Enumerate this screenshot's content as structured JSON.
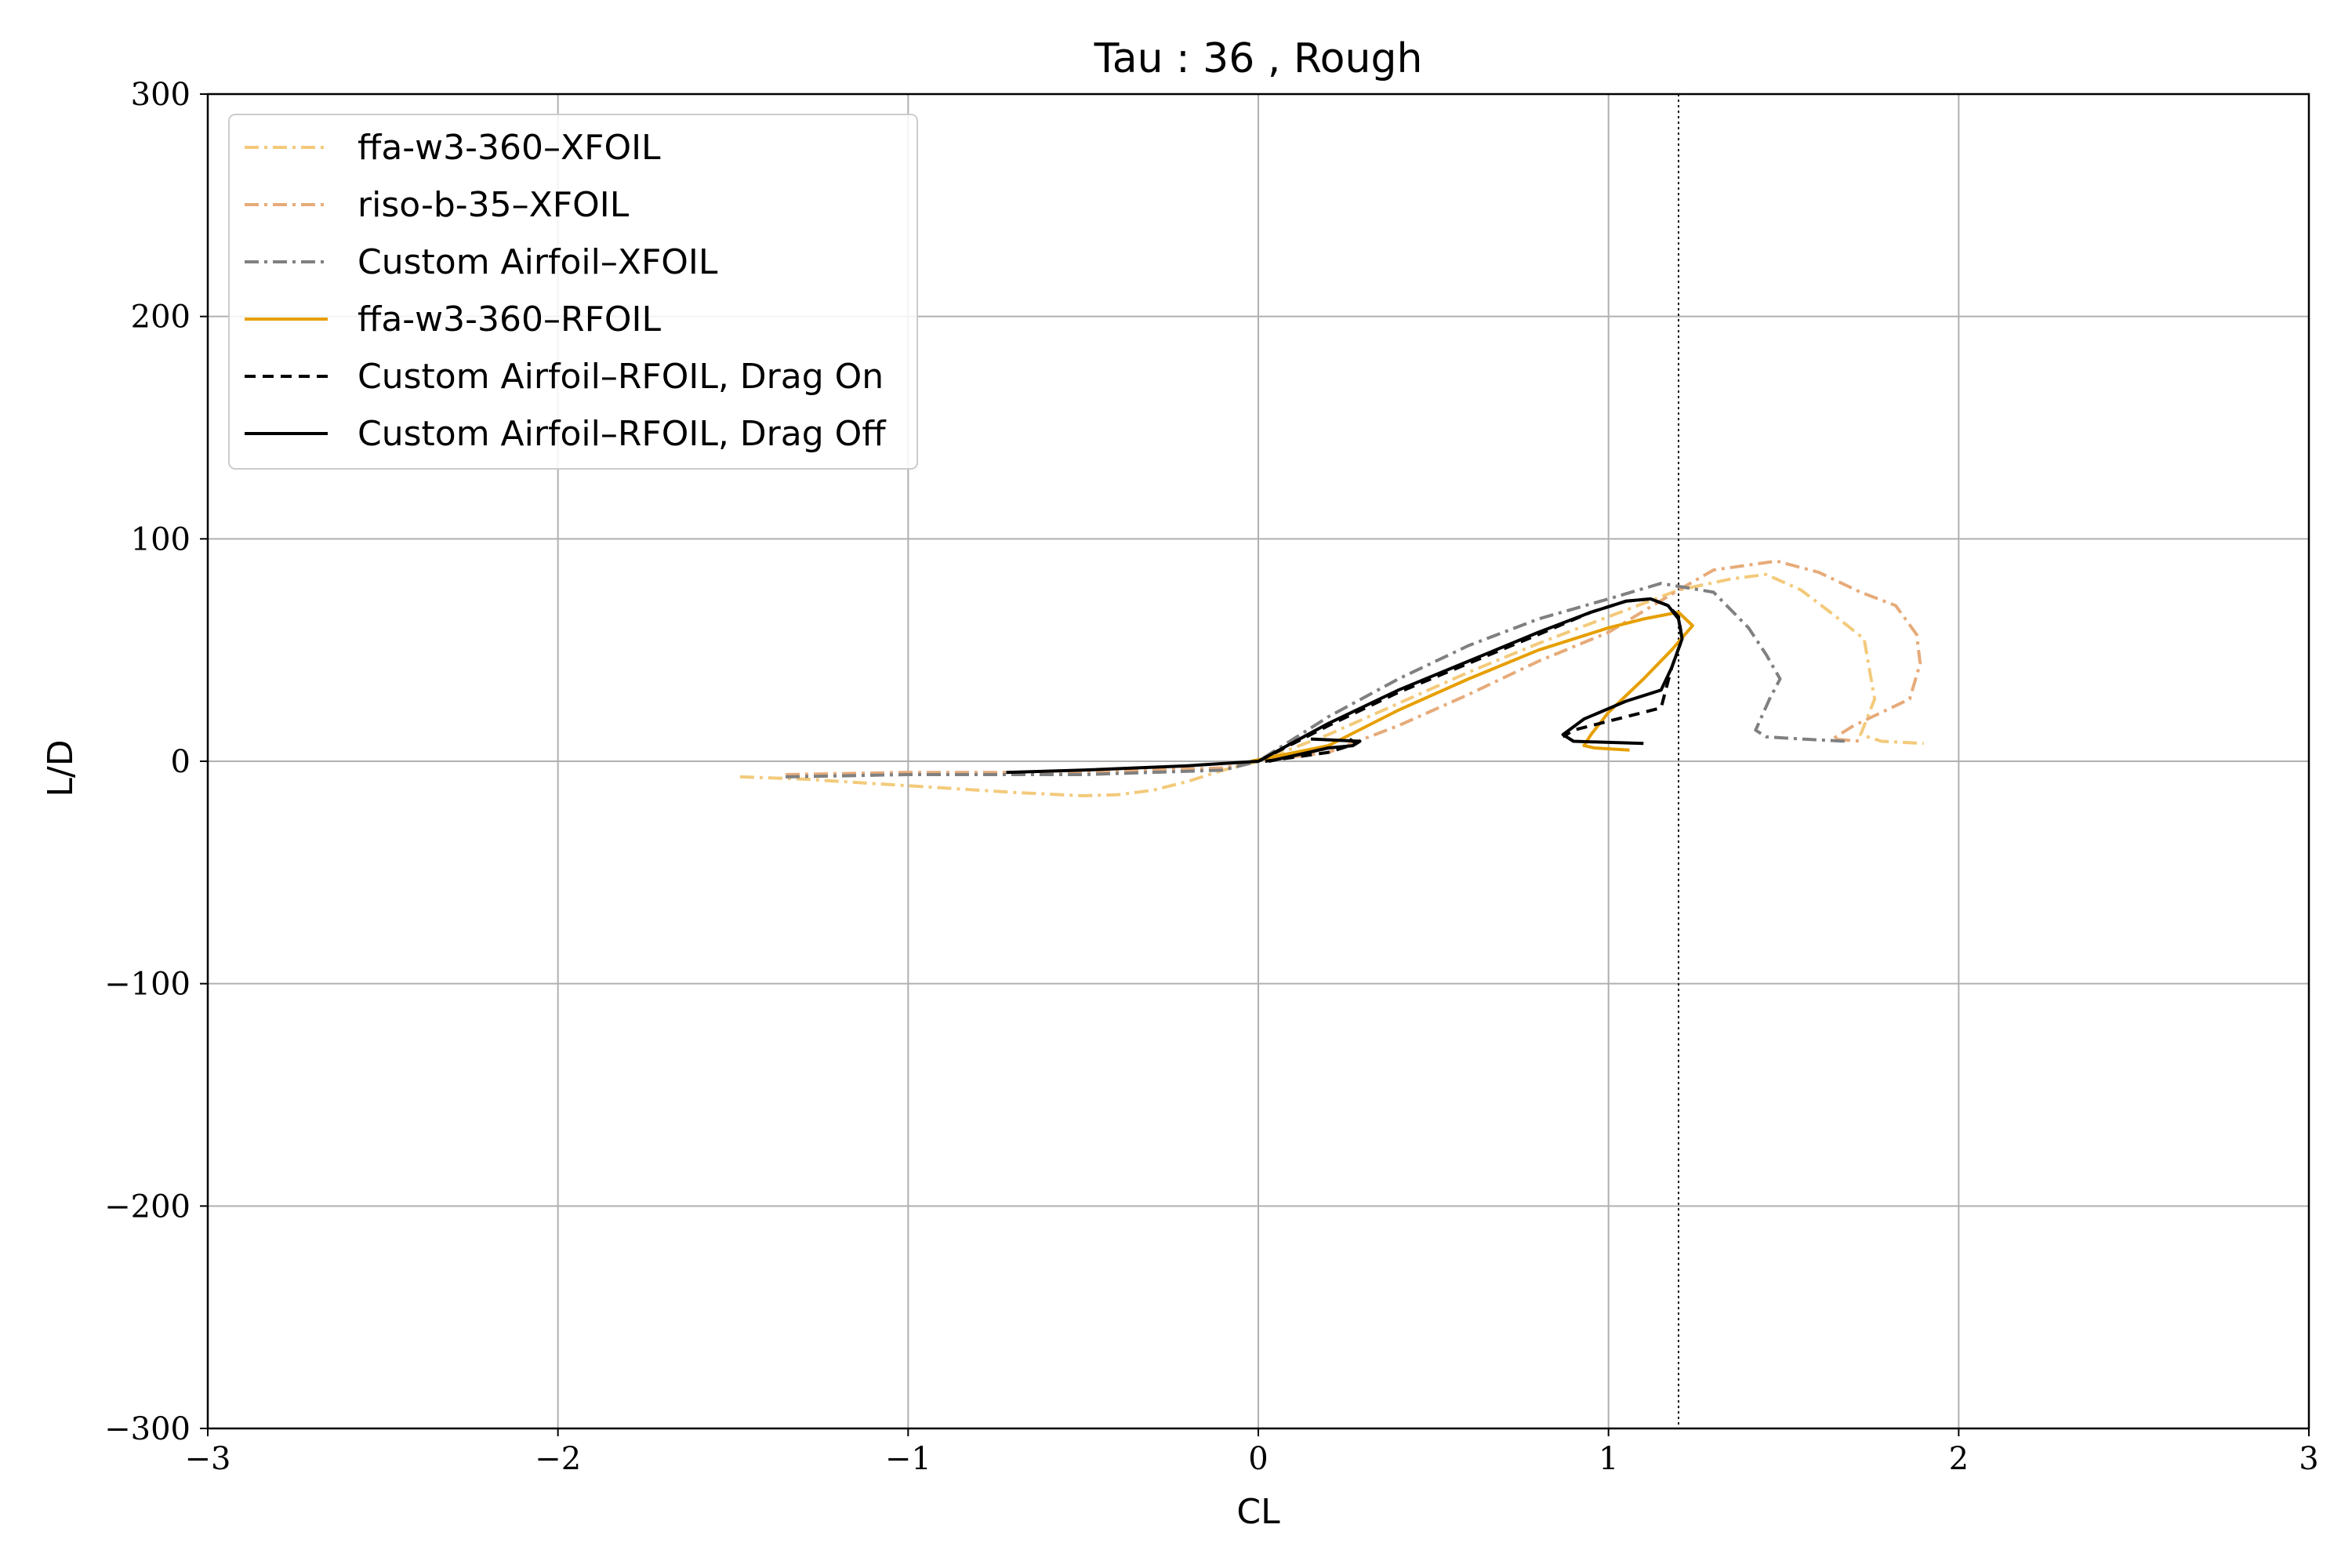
{
  "chart_data": {
    "type": "line",
    "title": "Tau : 36 , Rough",
    "xlabel": "CL",
    "ylabel": "L/D",
    "xlim": [
      -3,
      3
    ],
    "ylim": [
      -300,
      300
    ],
    "xticks": [
      -3,
      -2,
      -1,
      0,
      1,
      2,
      3
    ],
    "yticks": [
      -300,
      -200,
      -100,
      0,
      100,
      200,
      300
    ],
    "xtick_labels": [
      "−3",
      "−2",
      "−1",
      "0",
      "1",
      "2",
      "3"
    ],
    "ytick_labels": [
      "−300",
      "−200",
      "−100",
      "0",
      "100",
      "200",
      "300"
    ],
    "grid": true,
    "legend_position": "top-left",
    "vline": {
      "x": 1.2,
      "style": "dotted",
      "color": "#000000"
    },
    "series": [
      {
        "name": "ffa-w3-360–XFOIL",
        "color": "#f3ca7b",
        "dash": "dashdot",
        "x": [
          -1.48,
          -1.3,
          -1.1,
          -0.9,
          -0.7,
          -0.5,
          -0.4,
          -0.3,
          -0.2,
          -0.1,
          0.0,
          0.2,
          0.4,
          0.6,
          0.8,
          1.0,
          1.2,
          1.35,
          1.45,
          1.55,
          1.65,
          1.73,
          1.76,
          1.72,
          1.78,
          1.9
        ],
        "y": [
          -7,
          -8,
          -10,
          -12,
          -14,
          -15.5,
          -15,
          -13,
          -9,
          -4,
          0,
          12,
          26,
          40,
          53,
          65,
          77,
          82,
          84,
          77,
          65,
          55,
          28,
          12,
          9,
          8
        ]
      },
      {
        "name": "riso-b-35–XFOIL",
        "color": "#e6ab7a",
        "dash": "dashdot",
        "x": [
          -1.35,
          -1.0,
          -0.5,
          -0.1,
          0.0,
          0.2,
          0.4,
          0.6,
          0.8,
          1.0,
          1.2,
          1.3,
          1.48,
          1.6,
          1.72,
          1.82,
          1.88,
          1.89,
          1.86,
          1.78,
          1.7,
          1.64,
          1.72
        ],
        "y": [
          -6,
          -5,
          -5,
          -3,
          0,
          4,
          16,
          30,
          45,
          58,
          77,
          86,
          90,
          85,
          76,
          70,
          57,
          44,
          28,
          22,
          16,
          10,
          9
        ]
      },
      {
        "name": "Custom Airfoil–XFOIL",
        "color": "#808080",
        "dash": "dashdot",
        "x": [
          -1.35,
          -1.0,
          -0.5,
          -0.1,
          0.0,
          0.2,
          0.4,
          0.6,
          0.8,
          1.0,
          1.15,
          1.3,
          1.4,
          1.45,
          1.49,
          1.46,
          1.42,
          1.45,
          1.55,
          1.68
        ],
        "y": [
          -7,
          -6,
          -6,
          -4,
          0,
          20,
          37,
          52,
          64,
          73,
          80,
          76,
          60,
          48,
          37,
          28,
          14,
          11,
          10,
          9
        ]
      },
      {
        "name": "ffa-w3-360–RFOIL",
        "color": "#e69f00",
        "dash": "solid",
        "x": [
          -0.02,
          0.2,
          0.4,
          0.6,
          0.8,
          1.0,
          1.1,
          1.2,
          1.24,
          1.18,
          1.1,
          1.0,
          0.95,
          0.93,
          0.96,
          1.06
        ],
        "y": [
          0,
          7,
          23,
          37,
          50,
          60,
          64,
          67,
          61,
          50,
          37,
          22,
          12,
          7,
          6,
          5
        ]
      },
      {
        "name": "Custom Airfoil–RFOIL, Drag On",
        "color": "#000000",
        "dash": "dashed",
        "x": [
          0.0,
          0.2,
          0.4,
          0.6,
          0.8,
          0.95,
          1.05,
          1.12,
          1.17,
          1.2,
          1.21,
          1.18,
          1.15,
          1.1,
          1.0,
          0.9,
          0.87
        ],
        "y": [
          0,
          16,
          31,
          44,
          57,
          67,
          72,
          73,
          70,
          65,
          55,
          42,
          24,
          22,
          18,
          14,
          11
        ]
      },
      {
        "name": "Custom Airfoil–RFOIL, Drag Off",
        "color": "#000000",
        "dash": "solid",
        "x": [
          -0.72,
          -0.5,
          -0.2,
          0.0,
          0.2,
          0.4,
          0.6,
          0.8,
          0.95,
          1.05,
          1.12,
          1.17,
          1.2,
          1.21,
          1.18,
          1.15,
          1.05,
          0.93,
          0.87,
          0.9,
          1.1
        ],
        "y": [
          -5,
          -4,
          -2,
          0,
          17,
          32,
          45,
          58,
          67,
          72,
          73,
          70,
          64,
          55,
          42,
          32,
          27,
          19,
          12,
          9,
          8
        ]
      }
    ],
    "hook_series": [
      {
        "color": "#000000",
        "dash": "dashed",
        "x": [
          0.02,
          0.2,
          0.28,
          0.26
        ],
        "y": [
          0,
          4,
          8,
          10
        ]
      },
      {
        "color": "#000000",
        "dash": "solid",
        "x": [
          0.15,
          0.29,
          0.27,
          0.2,
          0.03
        ],
        "y": [
          10,
          9,
          7,
          6,
          0
        ]
      }
    ]
  }
}
